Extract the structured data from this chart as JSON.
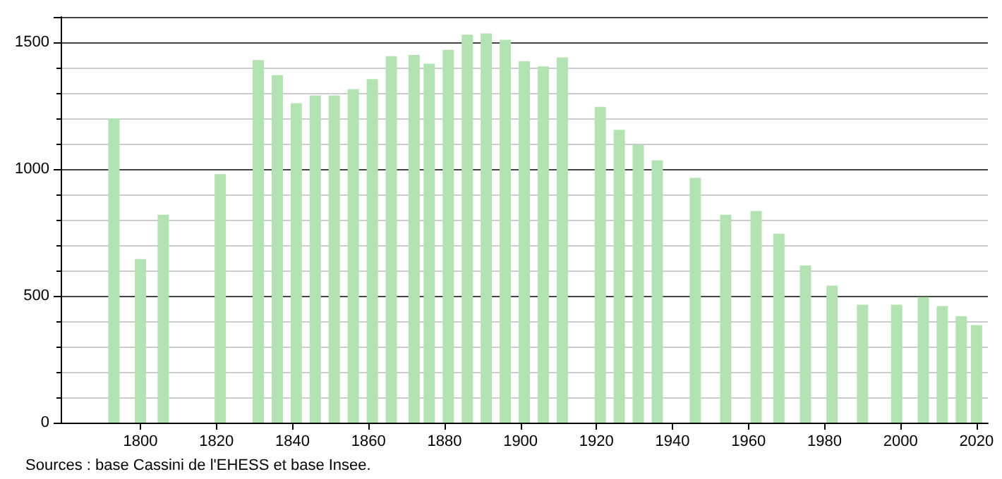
{
  "chart_data": {
    "type": "bar",
    "x": [
      1793,
      1800,
      1806,
      1821,
      1831,
      1836,
      1841,
      1846,
      1851,
      1856,
      1861,
      1866,
      1872,
      1876,
      1881,
      1886,
      1891,
      1896,
      1901,
      1906,
      1911,
      1921,
      1926,
      1931,
      1936,
      1946,
      1954,
      1962,
      1968,
      1975,
      1982,
      1990,
      1999,
      2006,
      2011,
      2016,
      2020
    ],
    "values": [
      1200,
      645,
      820,
      980,
      1430,
      1370,
      1260,
      1290,
      1290,
      1315,
      1355,
      1445,
      1450,
      1415,
      1470,
      1530,
      1535,
      1510,
      1425,
      1405,
      1440,
      1245,
      1155,
      1095,
      1035,
      965,
      820,
      835,
      745,
      620,
      540,
      465,
      465,
      495,
      460,
      420,
      385
    ],
    "color": "#b3e3b3",
    "xlim": [
      1779,
      2023
    ],
    "xticks": [
      1800,
      1820,
      1840,
      1860,
      1880,
      1900,
      1920,
      1940,
      1960,
      1980,
      2000,
      2020
    ],
    "ylim": [
      0,
      1600
    ],
    "yticks": [
      0,
      500,
      1000,
      1500
    ],
    "grid": "y",
    "annotations": [
      "Sources : base Cassini de l'EHESS et base Insee."
    ]
  }
}
